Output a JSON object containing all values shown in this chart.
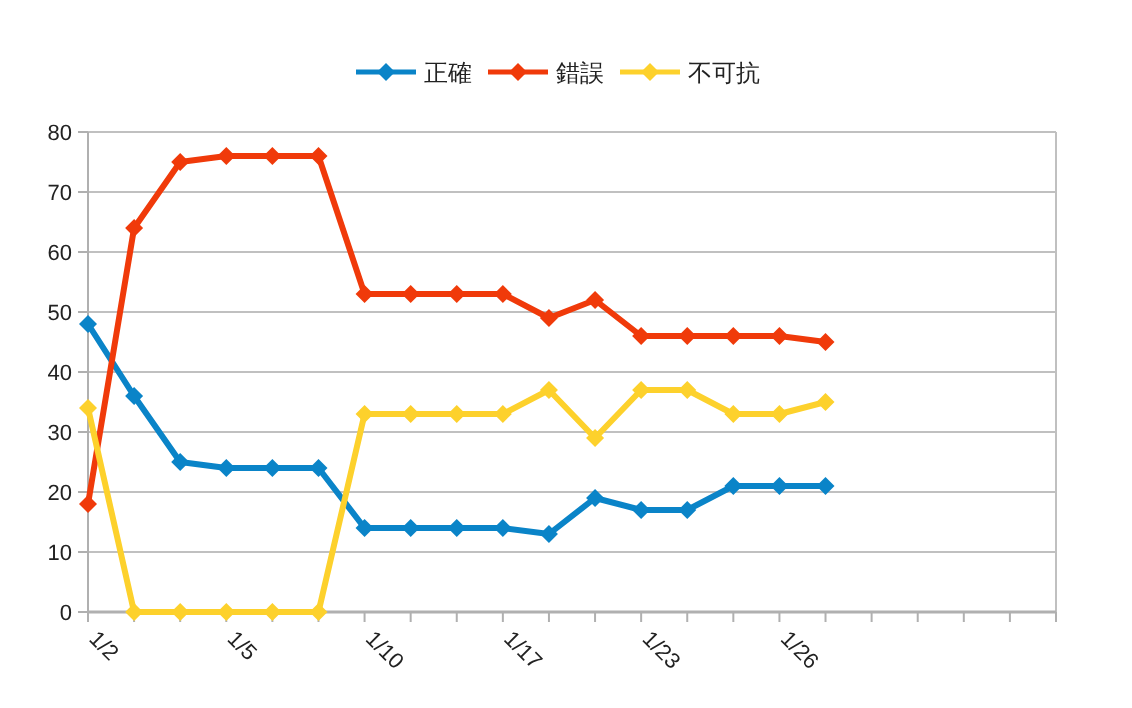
{
  "chart_data": {
    "type": "line",
    "categories": [
      "1/2",
      null,
      null,
      "1/5",
      null,
      null,
      "1/10",
      null,
      null,
      "1/17",
      null,
      null,
      "1/23",
      null,
      null,
      "1/26",
      null,
      null,
      null,
      null,
      null,
      null
    ],
    "series": [
      {
        "name": "正確",
        "color": "#0a84c8",
        "values": [
          48,
          36,
          25,
          24,
          24,
          24,
          14,
          14,
          14,
          14,
          13,
          19,
          17,
          17,
          21,
          21,
          21,
          null,
          null,
          null,
          null,
          null
        ]
      },
      {
        "name": "錯誤",
        "color": "#f03a0a",
        "values": [
          18,
          64,
          75,
          76,
          76,
          76,
          53,
          53,
          53,
          53,
          49,
          52,
          46,
          46,
          46,
          46,
          45,
          null,
          null,
          null,
          null,
          null
        ]
      },
      {
        "name": "不可抗",
        "color": "#fdd12c",
        "values": [
          34,
          0,
          0,
          0,
          0,
          0,
          33,
          33,
          33,
          33,
          37,
          29,
          37,
          37,
          33,
          33,
          35,
          null,
          null,
          null,
          null,
          null
        ]
      }
    ],
    "ylim": [
      0,
      80
    ],
    "yticks": [
      0,
      10,
      20,
      30,
      40,
      50,
      60,
      70,
      80
    ],
    "grid": "y",
    "legend": "top",
    "marker": "diamond",
    "line_style": "solid"
  }
}
